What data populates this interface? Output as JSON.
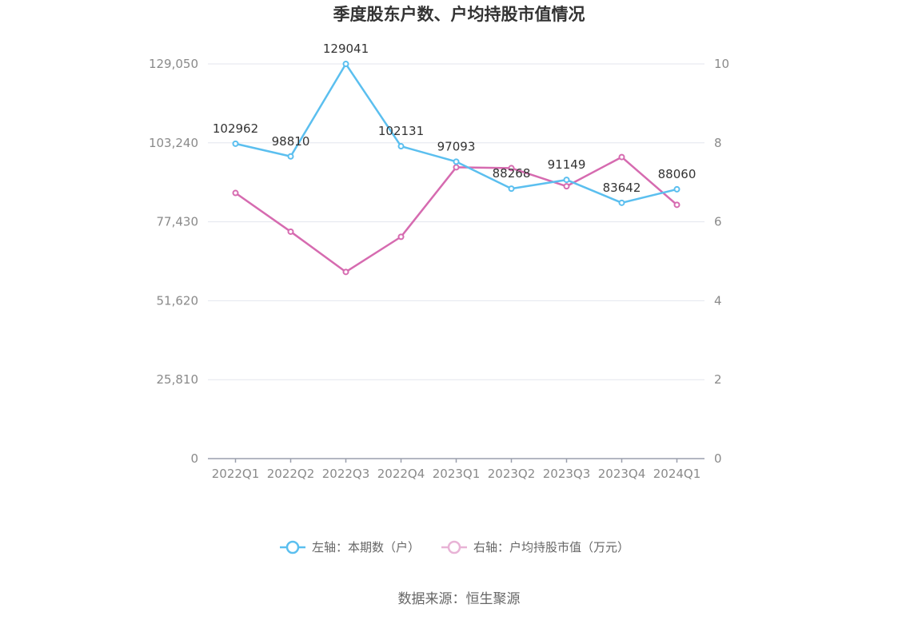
{
  "chart_data": {
    "type": "line",
    "title": "季度股东户数、户均持股市值情况",
    "categories": [
      "2022Q1",
      "2022Q2",
      "2022Q3",
      "2022Q4",
      "2023Q1",
      "2023Q2",
      "2023Q3",
      "2023Q4",
      "2024Q1"
    ],
    "left_axis": {
      "ylim": [
        0,
        129050
      ],
      "ticks": [
        0,
        25810,
        51620,
        77430,
        103240,
        129050
      ],
      "tick_labels": [
        "0",
        "25,810",
        "51,620",
        "77,430",
        "103,240",
        "129,050"
      ]
    },
    "right_axis": {
      "ylim": [
        0,
        10
      ],
      "ticks": [
        0,
        2,
        4,
        6,
        8,
        10
      ],
      "tick_labels": [
        "0",
        "2",
        "4",
        "6",
        "8",
        "10"
      ]
    },
    "series": [
      {
        "name": "左轴：本期数（户）",
        "axis": "left",
        "color": "#5bbfef",
        "values": [
          102962,
          98810,
          129041,
          102131,
          97093,
          88268,
          91149,
          83642,
          88060
        ],
        "labels": [
          "102962",
          "98810",
          "129041",
          "102131",
          "97093",
          "88268",
          "91149",
          "83642",
          "88060"
        ]
      },
      {
        "name": "右轴：户均持股市值（万元）",
        "axis": "right",
        "color": "#d66bb0",
        "values": [
          6.73,
          5.75,
          4.73,
          5.62,
          7.38,
          7.36,
          6.9,
          7.64,
          6.43
        ]
      }
    ],
    "grid": true,
    "legend_position": "bottom-center"
  },
  "source": "数据来源：恒生聚源"
}
